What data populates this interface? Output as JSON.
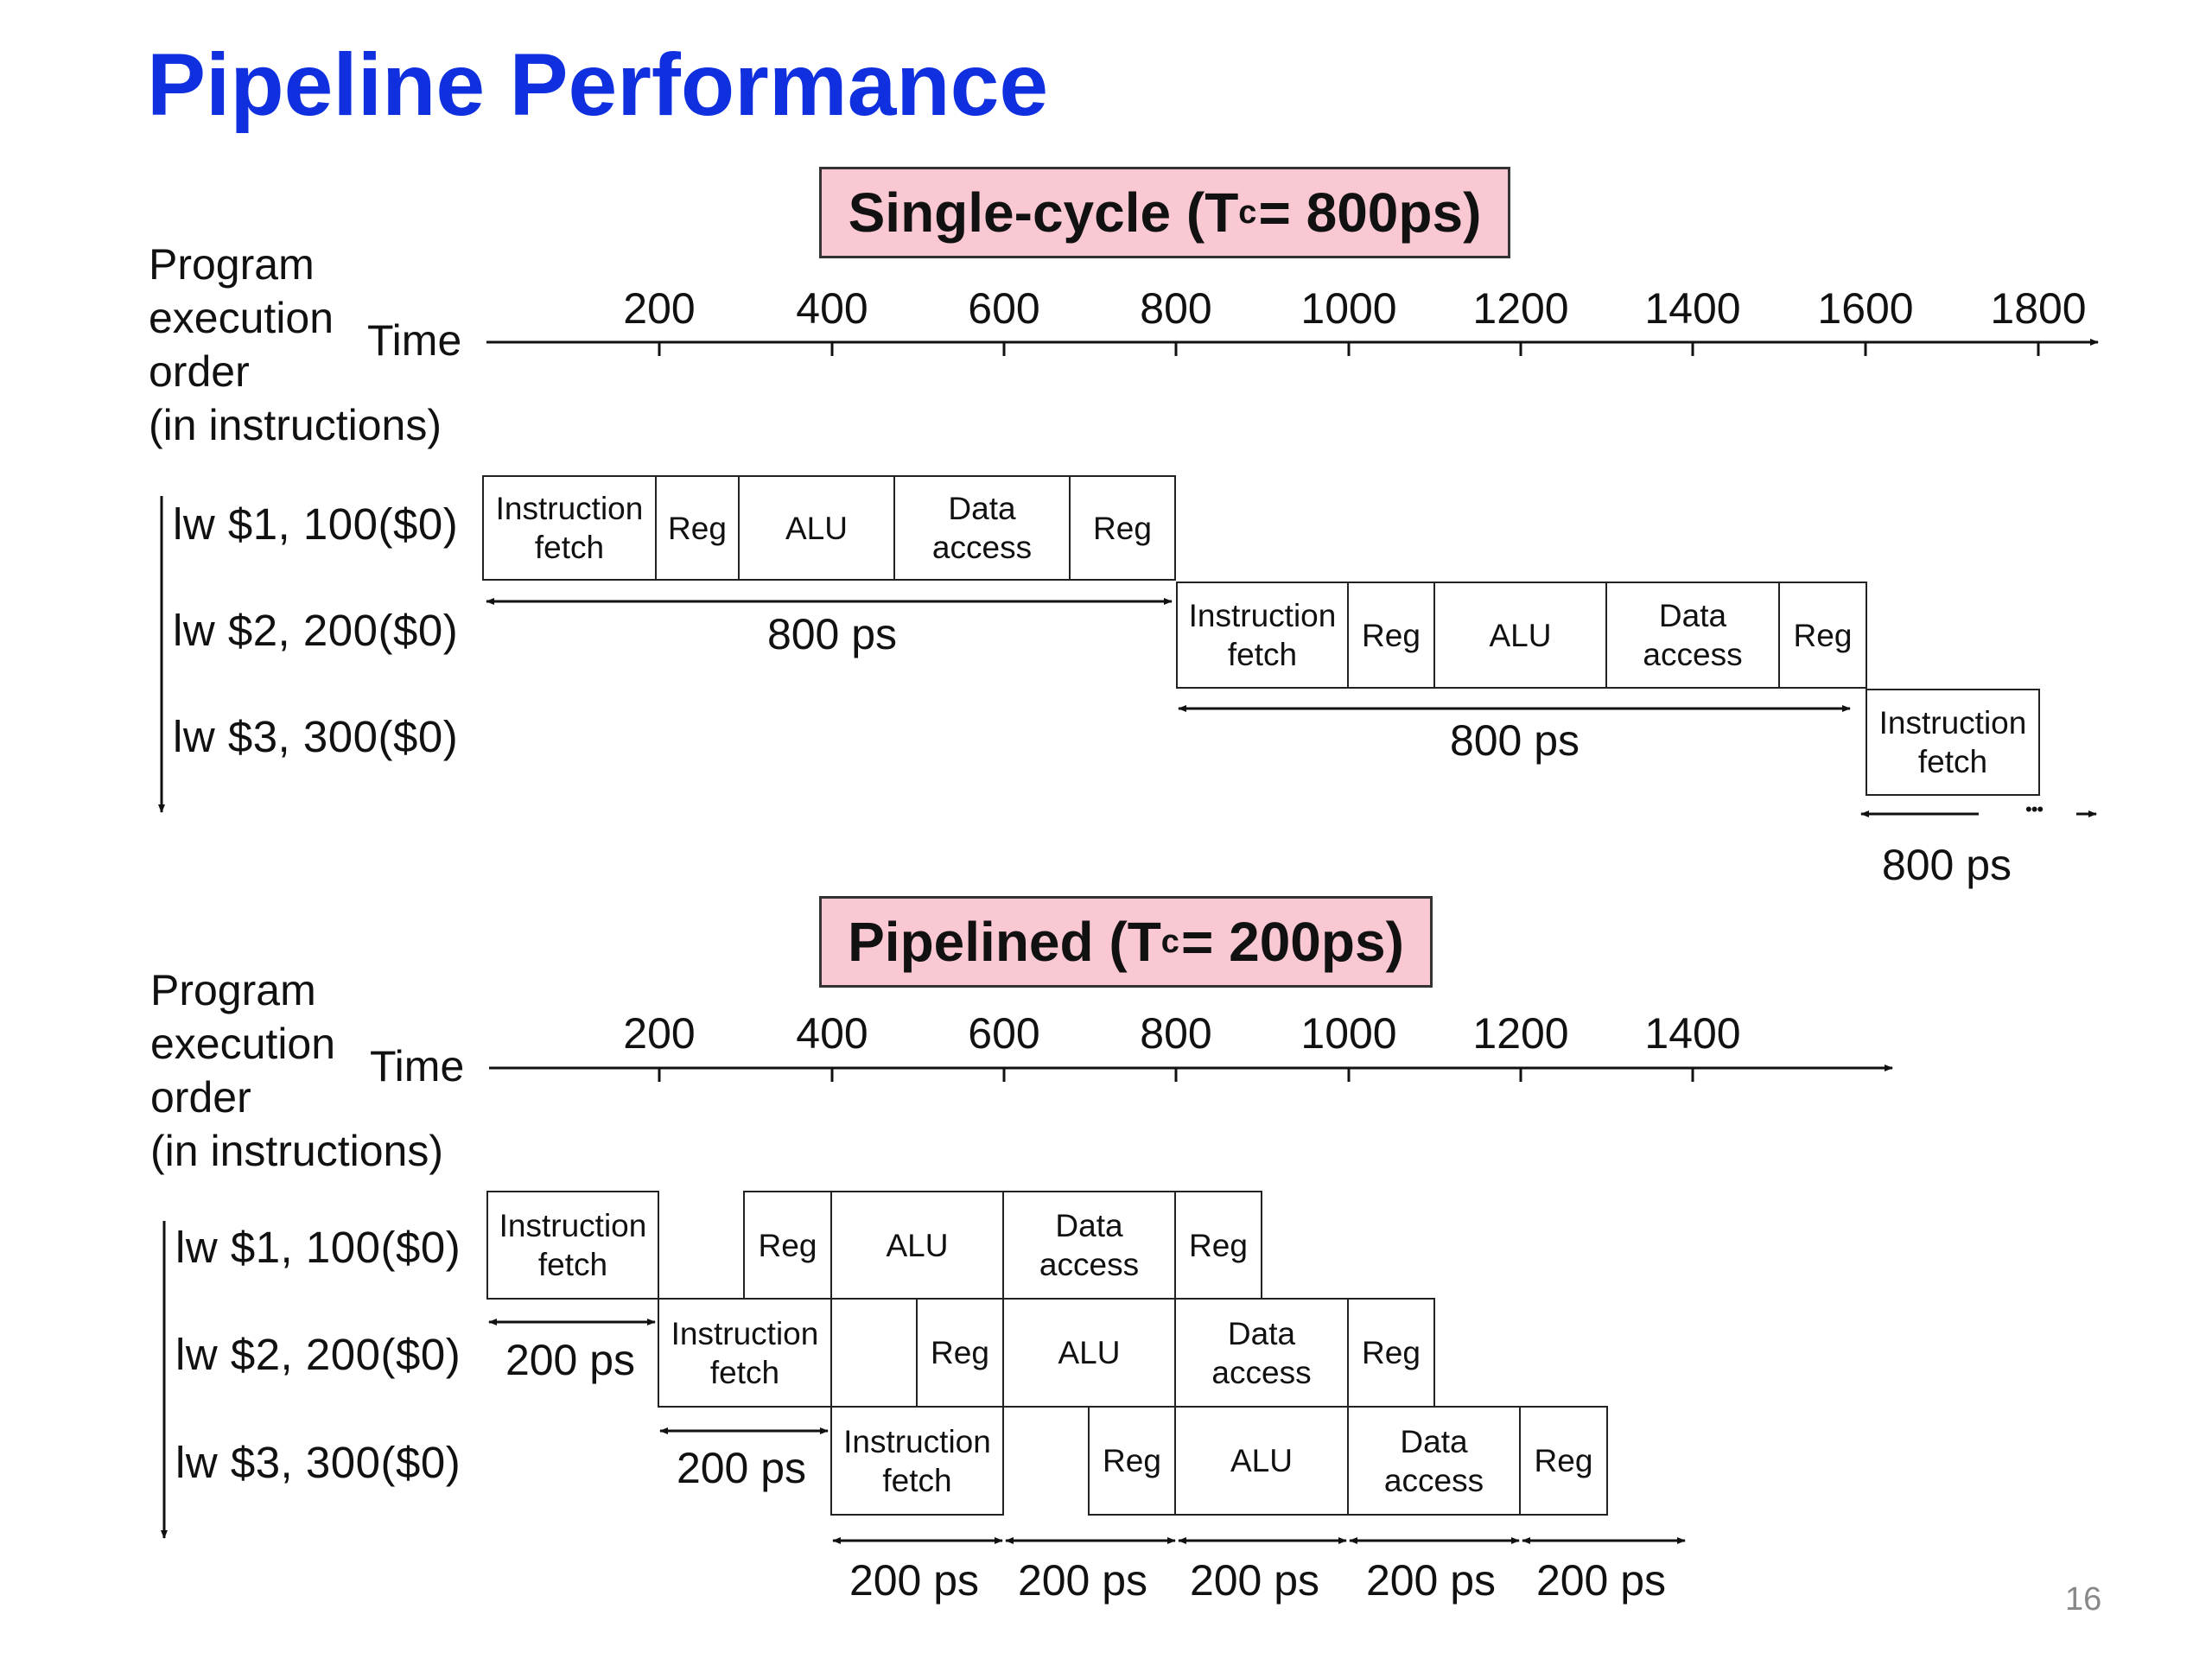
{
  "slide": {
    "title": "Pipeline Performance",
    "page_number": "16"
  },
  "single_cycle": {
    "banner_main": "Single-cycle (T",
    "banner_sub": "c",
    "banner_rest": "= 800ps)",
    "order_lines": [
      "Program",
      "execution",
      "order",
      "(in instructions)"
    ],
    "time_label": "Time",
    "ticks": [
      "200",
      "400",
      "600",
      "800",
      "1000",
      "1200",
      "1400",
      "1600",
      "1800"
    ],
    "instructions": [
      "lw  $1, 100($0)",
      "lw  $2, 200($0)",
      "lw  $3, 300($0)"
    ],
    "stage_labels": {
      "fetch": "Instruction\nfetch",
      "reg": "Reg",
      "alu": "ALU",
      "data": "Data\naccess"
    },
    "durations": [
      "800 ps",
      "800 ps",
      "800 ps"
    ],
    "ellipsis": "•••"
  },
  "pipelined": {
    "banner_main": "Pipelined (T",
    "banner_sub": "c",
    "banner_rest": "= 200ps)",
    "order_lines": [
      "Program",
      "execution",
      "order",
      "(in instructions)"
    ],
    "time_label": "Time",
    "ticks": [
      "200",
      "400",
      "600",
      "800",
      "1000",
      "1200",
      "1400"
    ],
    "instructions": [
      "lw  $1, 100($0)",
      "lw  $2, 200($0)",
      "lw  $3, 300($0)"
    ],
    "stage_labels": {
      "fetch": "Instruction\nfetch",
      "reg": "Reg",
      "alu": "ALU",
      "data": "Data\naccess"
    },
    "durations": [
      "200 ps",
      "200 ps",
      "200 ps",
      "200 ps",
      "200 ps",
      "200 ps",
      "200 ps"
    ]
  }
}
